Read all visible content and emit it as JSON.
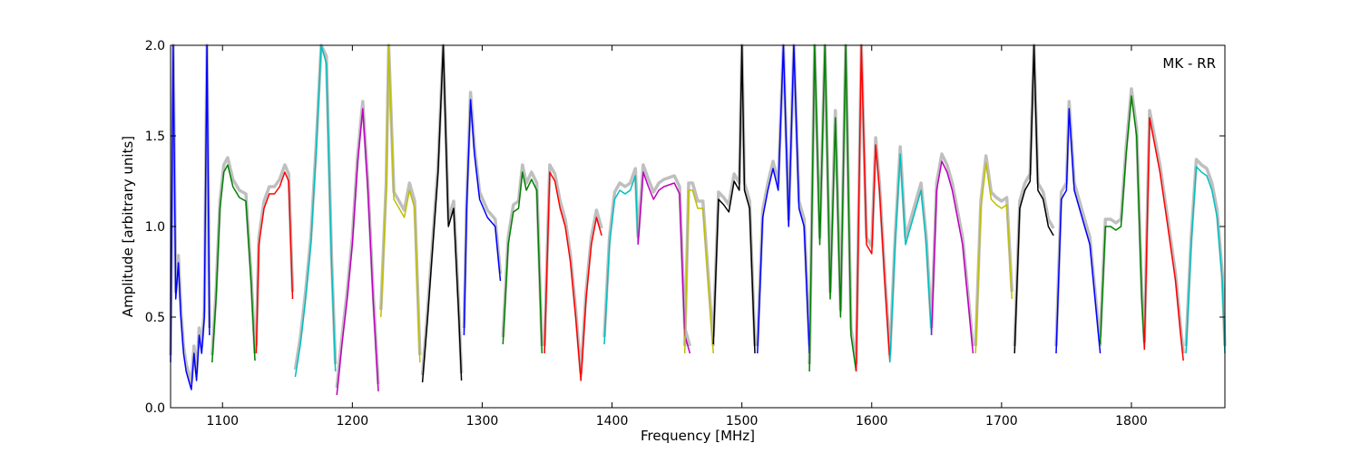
{
  "chart_data": {
    "type": "line",
    "title": "",
    "annotation": "MK - RR",
    "xlabel": "Frequency [MHz]",
    "ylabel": "Amplitude [arbitrary units]",
    "xlim": [
      1060,
      1872
    ],
    "ylim": [
      0.0,
      2.0
    ],
    "xticks": [
      "1100",
      "1200",
      "1300",
      "1400",
      "1500",
      "1600",
      "1700",
      "1800"
    ],
    "yticks": [
      "0.0",
      "0.5",
      "1.0",
      "1.5",
      "2.0"
    ],
    "grid": false,
    "legend": "none",
    "reference_color": "#bfbfbf",
    "series": [
      {
        "color": "#0000ff",
        "x": [
          1060,
          1062,
          1064,
          1066,
          1068,
          1070,
          1072,
          1074,
          1076,
          1078,
          1080,
          1082,
          1084,
          1086,
          1088,
          1090
        ],
        "y": [
          0.25,
          2.0,
          0.6,
          0.8,
          0.5,
          0.3,
          0.2,
          0.15,
          0.1,
          0.3,
          0.15,
          0.4,
          0.3,
          0.5,
          2.0,
          0.4
        ]
      },
      {
        "color": "#008000",
        "x": [
          1092,
          1095,
          1098,
          1101,
          1104,
          1108,
          1113,
          1118,
          1122,
          1125
        ],
        "y": [
          0.25,
          0.6,
          1.1,
          1.3,
          1.34,
          1.22,
          1.16,
          1.14,
          0.7,
          0.26
        ]
      },
      {
        "color": "#ff0000",
        "x": [
          1126,
          1128,
          1132,
          1136,
          1140,
          1144,
          1148,
          1151,
          1154
        ],
        "y": [
          0.3,
          0.9,
          1.1,
          1.18,
          1.18,
          1.22,
          1.3,
          1.25,
          0.6
        ]
      },
      {
        "color": "#00bfbf",
        "x": [
          1156,
          1160,
          1164,
          1168,
          1172,
          1176,
          1180,
          1184,
          1187
        ],
        "y": [
          0.17,
          0.35,
          0.6,
          0.9,
          1.4,
          2.0,
          1.9,
          0.8,
          0.2
        ]
      },
      {
        "color": "#bf00bf",
        "x": [
          1188,
          1192,
          1196,
          1200,
          1204,
          1208,
          1212,
          1216,
          1220
        ],
        "y": [
          0.07,
          0.35,
          0.6,
          0.9,
          1.35,
          1.65,
          1.2,
          0.6,
          0.09
        ]
      },
      {
        "color": "#bfbf00",
        "x": [
          1222,
          1226,
          1228,
          1232,
          1236,
          1240,
          1244,
          1248,
          1252
        ],
        "y": [
          0.5,
          1.2,
          2.0,
          1.15,
          1.1,
          1.05,
          1.2,
          1.1,
          0.25
        ]
      },
      {
        "color": "#000000",
        "x": [
          1254,
          1258,
          1262,
          1266,
          1270,
          1274,
          1278,
          1282,
          1284
        ],
        "y": [
          0.14,
          0.5,
          0.9,
          1.3,
          2.0,
          1.0,
          1.1,
          0.5,
          0.15
        ]
      },
      {
        "color": "#0000ff",
        "x": [
          1286,
          1288,
          1291,
          1294,
          1298,
          1304,
          1310,
          1314
        ],
        "y": [
          0.4,
          1.1,
          1.7,
          1.4,
          1.15,
          1.05,
          1.0,
          0.7
        ]
      },
      {
        "color": "#008000",
        "x": [
          1316,
          1320,
          1324,
          1328,
          1331,
          1334,
          1338,
          1342,
          1346
        ],
        "y": [
          0.35,
          0.9,
          1.08,
          1.1,
          1.3,
          1.2,
          1.26,
          1.2,
          0.3
        ]
      },
      {
        "color": "#ff0000",
        "x": [
          1348,
          1352,
          1356,
          1360,
          1364,
          1368,
          1372,
          1376,
          1380,
          1384,
          1388,
          1392
        ],
        "y": [
          0.3,
          1.3,
          1.25,
          1.1,
          1.0,
          0.8,
          0.5,
          0.15,
          0.6,
          0.9,
          1.05,
          0.95
        ]
      },
      {
        "color": "#00bfbf",
        "x": [
          1394,
          1398,
          1402,
          1406,
          1410,
          1414,
          1418,
          1420
        ],
        "y": [
          0.35,
          0.9,
          1.15,
          1.2,
          1.18,
          1.2,
          1.28,
          0.9
        ]
      },
      {
        "color": "#bf00bf",
        "x": [
          1420,
          1424,
          1428,
          1432,
          1436,
          1440,
          1444,
          1448,
          1452,
          1456,
          1460
        ],
        "y": [
          0.9,
          1.3,
          1.22,
          1.15,
          1.2,
          1.22,
          1.23,
          1.24,
          1.18,
          0.4,
          0.3
        ]
      },
      {
        "color": "#bfbf00",
        "x": [
          1456,
          1459,
          1462,
          1466,
          1470,
          1474,
          1478
        ],
        "y": [
          0.3,
          1.2,
          1.2,
          1.1,
          1.1,
          0.7,
          0.3
        ]
      },
      {
        "color": "#000000",
        "x": [
          1478,
          1482,
          1486,
          1490,
          1494,
          1498,
          1500,
          1502,
          1506,
          1510
        ],
        "y": [
          0.35,
          1.15,
          1.12,
          1.08,
          1.25,
          1.2,
          2.0,
          1.2,
          1.1,
          0.3
        ]
      },
      {
        "color": "#0000ff",
        "x": [
          1512,
          1516,
          1520,
          1524,
          1528,
          1532,
          1536,
          1540,
          1544,
          1548,
          1552
        ],
        "y": [
          0.3,
          1.05,
          1.2,
          1.32,
          1.2,
          2.0,
          1.0,
          2.0,
          1.1,
          1.0,
          0.3
        ]
      },
      {
        "color": "#008000",
        "x": [
          1552,
          1556,
          1560,
          1564,
          1568,
          1572,
          1576,
          1580,
          1584,
          1588
        ],
        "y": [
          0.2,
          2.0,
          0.9,
          2.0,
          0.6,
          1.6,
          0.5,
          2.0,
          0.4,
          0.2
        ]
      },
      {
        "color": "#ff0000",
        "x": [
          1588,
          1592,
          1596,
          1600,
          1603,
          1606,
          1610,
          1614
        ],
        "y": [
          0.2,
          2.0,
          0.9,
          0.85,
          1.45,
          1.2,
          0.7,
          0.25
        ]
      },
      {
        "color": "#00bfbf",
        "x": [
          1614,
          1618,
          1622,
          1626,
          1630,
          1634,
          1638,
          1642,
          1646
        ],
        "y": [
          0.25,
          0.9,
          1.4,
          0.9,
          1.0,
          1.1,
          1.2,
          0.9,
          0.4
        ]
      },
      {
        "color": "#bf00bf",
        "x": [
          1646,
          1650,
          1654,
          1658,
          1662,
          1666,
          1670,
          1674,
          1678
        ],
        "y": [
          0.4,
          1.2,
          1.36,
          1.3,
          1.2,
          1.05,
          0.9,
          0.6,
          0.3
        ]
      },
      {
        "color": "#bfbf00",
        "x": [
          1680,
          1684,
          1688,
          1692,
          1696,
          1700,
          1704,
          1708
        ],
        "y": [
          0.3,
          1.1,
          1.35,
          1.15,
          1.12,
          1.1,
          1.12,
          0.6
        ]
      },
      {
        "color": "#000000",
        "x": [
          1710,
          1714,
          1718,
          1722,
          1725,
          1728,
          1732,
          1736,
          1740
        ],
        "y": [
          0.3,
          1.1,
          1.2,
          1.25,
          2.0,
          1.2,
          1.15,
          1.0,
          0.95
        ]
      },
      {
        "color": "#0000ff",
        "x": [
          1742,
          1746,
          1750,
          1752,
          1756,
          1760,
          1764,
          1768,
          1772,
          1776
        ],
        "y": [
          0.3,
          1.15,
          1.2,
          1.65,
          1.2,
          1.1,
          1.0,
          0.9,
          0.6,
          0.3
        ]
      },
      {
        "color": "#008000",
        "x": [
          1776,
          1780,
          1784,
          1788,
          1792,
          1796,
          1800,
          1804,
          1808,
          1810
        ],
        "y": [
          0.35,
          1.0,
          1.0,
          0.98,
          1.0,
          1.4,
          1.72,
          1.5,
          0.6,
          0.32
        ]
      },
      {
        "color": "#ff0000",
        "x": [
          1810,
          1814,
          1818,
          1822,
          1826,
          1830,
          1834,
          1838,
          1840
        ],
        "y": [
          0.32,
          1.6,
          1.45,
          1.3,
          1.1,
          0.9,
          0.7,
          0.4,
          0.26
        ]
      },
      {
        "color": "#00bfbf",
        "x": [
          1842,
          1846,
          1850,
          1854,
          1858,
          1862,
          1866,
          1870,
          1872
        ],
        "y": [
          0.3,
          0.9,
          1.33,
          1.3,
          1.28,
          1.2,
          1.05,
          0.7,
          0.3
        ]
      }
    ]
  }
}
